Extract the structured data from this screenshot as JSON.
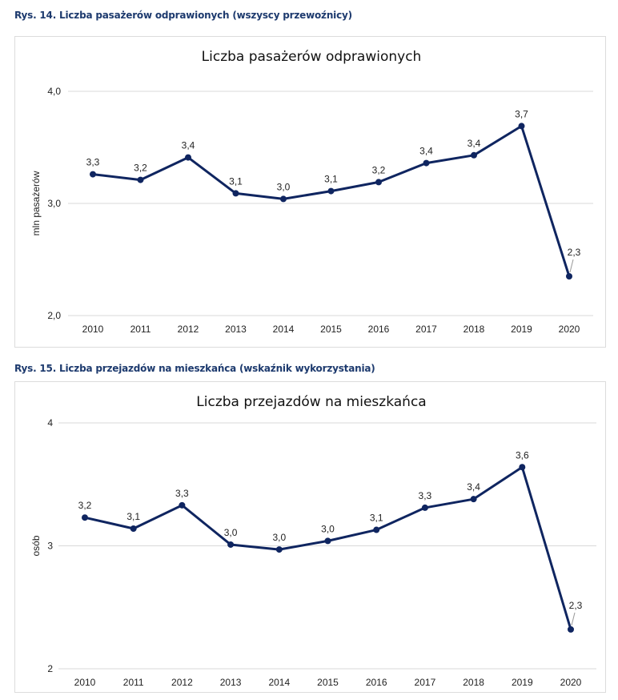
{
  "figures": [
    {
      "caption": "Rys. 14. Liczba pasażerów odprawionych (wszyscy przewoźnicy)"
    },
    {
      "caption": "Rys. 15. Liczba przejazdów na mieszkańca (wskaźnik wykorzystania)"
    }
  ],
  "colors": {
    "series": "#0f2560",
    "caption": "#1d3a6e",
    "grid": "#d9d9d9"
  },
  "chart_data": [
    {
      "type": "line",
      "title": "Liczba pasażerów odprawionych",
      "xlabel": "",
      "ylabel": "mln pasażerów",
      "ylim": [
        2.0,
        4.0
      ],
      "yticks": [
        2.0,
        3.0,
        4.0
      ],
      "ytick_labels": [
        "2,0",
        "3,0",
        "4,0"
      ],
      "grid": true,
      "legend": "none",
      "categories": [
        "2010",
        "2011",
        "2012",
        "2013",
        "2014",
        "2015",
        "2016",
        "2017",
        "2018",
        "2019",
        "2020"
      ],
      "series": [
        {
          "name": "Liczba pasażerów odprawionych",
          "values": [
            3.26,
            3.21,
            3.41,
            3.09,
            3.04,
            3.11,
            3.19,
            3.36,
            3.43,
            3.69,
            2.35
          ],
          "labels": [
            "3,3",
            "3,2",
            "3,4",
            "3,1",
            "3,0",
            "3,1",
            "3,2",
            "3,4",
            "3,4",
            "3,7",
            "2,3"
          ]
        }
      ]
    },
    {
      "type": "line",
      "title": "Liczba przejazdów na mieszkańca",
      "xlabel": "",
      "ylabel": "osób",
      "ylim": [
        2,
        4
      ],
      "yticks": [
        2,
        3,
        4
      ],
      "ytick_labels": [
        "2",
        "3",
        "4"
      ],
      "grid": true,
      "legend": "none",
      "categories": [
        "2010",
        "2011",
        "2012",
        "2013",
        "2014",
        "2015",
        "2016",
        "2017",
        "2018",
        "2019",
        "2020"
      ],
      "series": [
        {
          "name": "Liczba przejazdów na mieszkańca",
          "values": [
            3.23,
            3.14,
            3.33,
            3.01,
            2.97,
            3.04,
            3.13,
            3.31,
            3.38,
            3.64,
            2.32
          ],
          "labels": [
            "3,2",
            "3,1",
            "3,3",
            "3,0",
            "3,0",
            "3,0",
            "3,1",
            "3,3",
            "3,4",
            "3,6",
            "2,3"
          ]
        }
      ]
    }
  ]
}
